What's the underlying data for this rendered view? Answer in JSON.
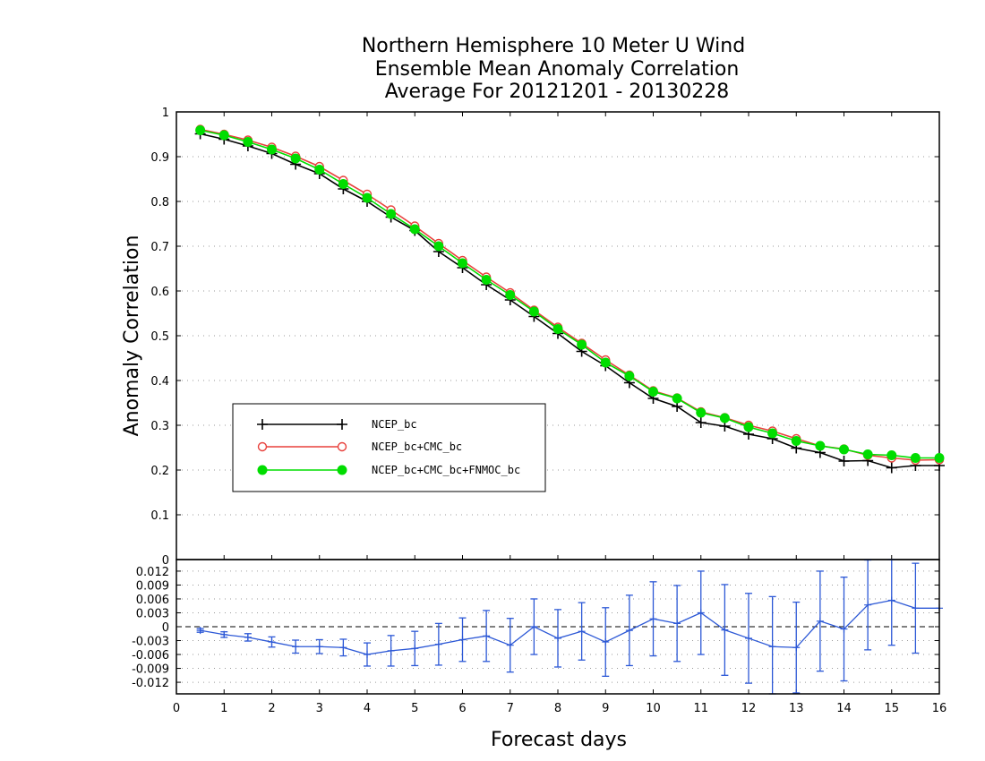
{
  "title_lines": [
    "Northern Hemisphere 10 Meter U Wind",
    "Ensemble Mean Anomaly Correlation",
    "Average For 20121201 - 20130228"
  ],
  "colors": {
    "ncep": "#000000",
    "cmc": "#e8413c",
    "fnmoc": "#00dd00",
    "diff": "#2c58d6"
  },
  "chart_data": [
    {
      "type": "line",
      "title": "Northern Hemisphere 10 Meter U Wind Ensemble Mean Anomaly Correlation Average For 20121201 - 20130228",
      "ylabel": "Anomaly Correlation",
      "xlim": [
        0,
        16
      ],
      "ylim": [
        0,
        1
      ],
      "yticks": [
        "0.1",
        "0.2",
        "0.3",
        "0.4",
        "0.5",
        "0.6",
        "0.7",
        "0.8",
        "0.9",
        "1"
      ],
      "grid": true,
      "legend_position": "left-middle",
      "x": [
        0.5,
        1,
        1.5,
        2,
        2.5,
        3,
        3.5,
        4,
        4.5,
        5,
        5.5,
        6,
        6.5,
        7,
        7.5,
        8,
        8.5,
        9,
        9.5,
        10,
        10.5,
        11,
        11.5,
        12,
        12.5,
        13,
        13.5,
        14,
        14.5,
        15,
        15.5,
        16
      ],
      "series": [
        {
          "name": "NCEP_bc",
          "marker": "plus",
          "color": "#000000",
          "values": [
            0.951,
            0.939,
            0.924,
            0.907,
            0.883,
            0.862,
            0.828,
            0.8,
            0.765,
            0.735,
            0.688,
            0.652,
            0.614,
            0.58,
            0.543,
            0.505,
            0.465,
            0.433,
            0.395,
            0.36,
            0.342,
            0.306,
            0.298,
            0.28,
            0.27,
            0.249,
            0.239,
            0.22,
            0.221,
            0.205,
            0.21,
            0.21
          ]
        },
        {
          "name": "NCEP_bc+CMC_bc",
          "marker": "open-circle",
          "color": "#e8413c",
          "values": [
            0.961,
            0.95,
            0.937,
            0.921,
            0.901,
            0.878,
            0.847,
            0.816,
            0.781,
            0.745,
            0.706,
            0.668,
            0.631,
            0.596,
            0.557,
            0.519,
            0.483,
            0.446,
            0.412,
            0.377,
            0.361,
            0.33,
            0.317,
            0.3,
            0.287,
            0.27,
            0.254,
            0.247,
            0.233,
            0.227,
            0.222,
            0.223
          ]
        },
        {
          "name": "NCEP_bc+CMC_bc+FNMOC_bc",
          "marker": "filled-circle",
          "color": "#00dd00",
          "values": [
            0.959,
            0.948,
            0.933,
            0.916,
            0.896,
            0.871,
            0.839,
            0.808,
            0.772,
            0.738,
            0.7,
            0.662,
            0.625,
            0.591,
            0.554,
            0.515,
            0.48,
            0.44,
            0.41,
            0.375,
            0.36,
            0.328,
            0.316,
            0.296,
            0.282,
            0.265,
            0.254,
            0.246,
            0.235,
            0.233,
            0.227,
            0.227
          ]
        }
      ]
    },
    {
      "type": "line",
      "xlabel": "Forecast days",
      "xlim": [
        0,
        16
      ],
      "ylim": [
        -0.0145,
        0.0145
      ],
      "xticks": [
        "0",
        "1",
        "2",
        "3",
        "4",
        "5",
        "6",
        "7",
        "8",
        "9",
        "10",
        "11",
        "12",
        "13",
        "14",
        "15",
        "16"
      ],
      "yticks": [
        "-0.012",
        "-0.009",
        "-0.006",
        "-0.003",
        "0",
        "0.003",
        "0.006",
        "0.009",
        "0.012"
      ],
      "top_label": "0",
      "grid": true,
      "x": [
        0.5,
        1,
        1.5,
        2,
        2.5,
        3,
        3.5,
        4,
        4.5,
        5,
        5.5,
        6,
        6.5,
        7,
        7.5,
        8,
        8.5,
        9,
        9.5,
        10,
        10.5,
        11,
        11.5,
        12,
        12.5,
        13,
        13.5,
        14,
        14.5,
        15,
        15.5,
        16
      ],
      "series": [
        {
          "name": "difference",
          "color": "#2c58d6",
          "values": [
            -0.0008,
            -0.0017,
            -0.0023,
            -0.0033,
            -0.0043,
            -0.0043,
            -0.0045,
            -0.006,
            -0.0052,
            -0.0047,
            -0.0038,
            -0.0028,
            -0.002,
            -0.004,
            0.0,
            -0.0025,
            -0.001,
            -0.0033,
            -0.0008,
            0.0017,
            0.0007,
            0.003,
            -0.0007,
            -0.0025,
            -0.0043,
            -0.0045,
            0.0012,
            -0.0005,
            0.0047,
            0.0057,
            0.004,
            0.004
          ],
          "errors": [
            0.0004,
            0.0006,
            0.0008,
            0.0011,
            0.0014,
            0.0015,
            0.0018,
            0.0025,
            0.0033,
            0.0037,
            0.0045,
            0.0047,
            0.0055,
            0.0058,
            0.006,
            0.0062,
            0.0062,
            0.0074,
            0.0076,
            0.008,
            0.0082,
            0.009,
            0.0098,
            0.0097,
            0.0108,
            0.0098,
            0.0108,
            0.0112,
            0.0097,
            0.0097,
            0.0097,
            0
          ]
        }
      ]
    }
  ]
}
